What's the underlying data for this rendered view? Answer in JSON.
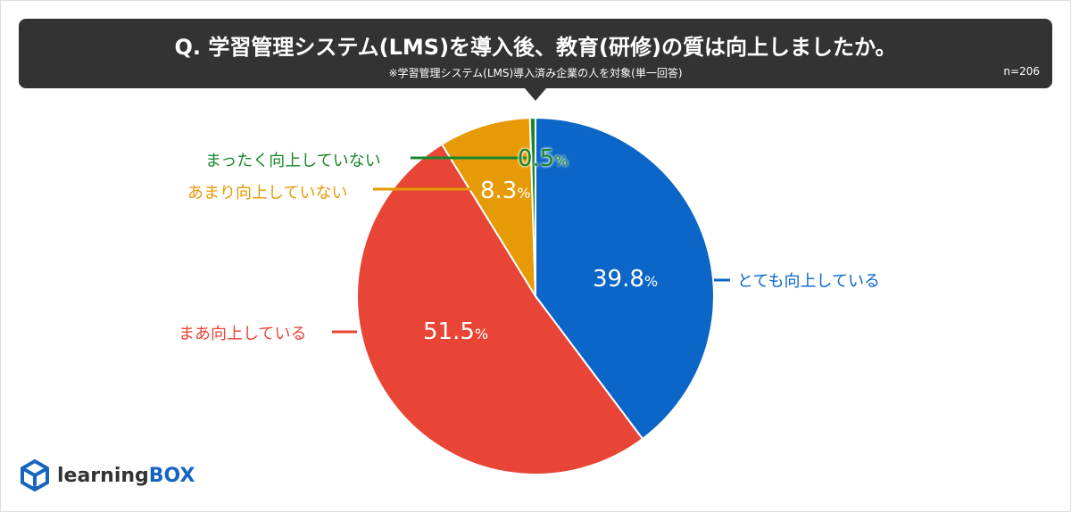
{
  "header": {
    "title": "Q. 学習管理システム(LMS)を導入後、教育(研修)の質は向上しましたか。",
    "subtitle": "※学習管理システム(LMS)導入済み企業の人を対象(単一回答)",
    "n": "n=206"
  },
  "chart_data": {
    "type": "pie",
    "start": "top, clockwise",
    "slices": [
      {
        "label": "とても向上している",
        "value": 39.8,
        "display": "39.8",
        "color": "#0b66c7"
      },
      {
        "label": "まあ向上している",
        "value": 51.5,
        "display": "51.5",
        "color": "#e84536"
      },
      {
        "label": "あまり向上していない",
        "value": 8.3,
        "display": "8.3",
        "color": "#e69a06"
      },
      {
        "label": "まったく向上していない",
        "value": 0.5,
        "display": "0.5",
        "color": "#17862c"
      }
    ],
    "unit": "%"
  },
  "logo": {
    "text1": "learning",
    "text2": "BOX"
  }
}
